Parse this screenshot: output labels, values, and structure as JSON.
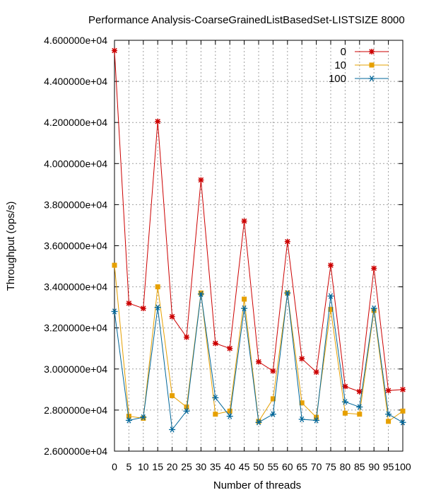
{
  "chart_data": {
    "type": "line",
    "title": "Performance Analysis-CoarseGrainedListBasedSet-LISTSIZE 8000",
    "xlabel": "Number of threads",
    "ylabel": "Throughput (ops/s)",
    "x": [
      0,
      5,
      10,
      15,
      20,
      25,
      30,
      35,
      40,
      45,
      50,
      55,
      60,
      65,
      70,
      75,
      80,
      85,
      90,
      95,
      100
    ],
    "xlim": [
      0,
      100
    ],
    "ylim": [
      26000,
      46000
    ],
    "x_ticks": [
      0,
      5,
      10,
      15,
      20,
      25,
      30,
      35,
      40,
      45,
      50,
      55,
      60,
      65,
      70,
      75,
      80,
      85,
      90,
      95,
      100
    ],
    "x_tick_labels": [
      "0",
      "5",
      "10",
      "15",
      "20",
      "25",
      "30",
      "35",
      "40",
      "45",
      "50",
      "55",
      "60",
      "65",
      "70",
      "75",
      "80",
      "85",
      "90",
      "95",
      "100"
    ],
    "y_ticks": [
      26000,
      28000,
      30000,
      32000,
      34000,
      36000,
      38000,
      40000,
      42000,
      44000,
      46000
    ],
    "y_tick_labels": [
      "2.600000e+04",
      "2.800000e+04",
      "3.000000e+04",
      "3.200000e+04",
      "3.400000e+04",
      "3.600000e+04",
      "3.800000e+04",
      "4.000000e+04",
      "4.200000e+04",
      "4.400000e+04",
      "4.600000e+04"
    ],
    "grid": true,
    "legend_position": "top-right",
    "series": [
      {
        "name": "0",
        "color": "#cc0000",
        "marker": "star",
        "values": [
          45500,
          33200,
          32950,
          42050,
          32550,
          31550,
          39200,
          31250,
          31000,
          37200,
          30350,
          29900,
          36200,
          30500,
          29850,
          35050,
          29150,
          28900,
          34900,
          28950,
          29000
        ]
      },
      {
        "name": "10",
        "color": "#e6a000",
        "marker": "square",
        "values": [
          35050,
          27700,
          27600,
          34000,
          28700,
          28150,
          33700,
          27800,
          27950,
          33400,
          27450,
          28550,
          33700,
          28350,
          27650,
          32900,
          27850,
          27800,
          32850,
          27450,
          27950
        ]
      },
      {
        "name": "100",
        "color": "#006699",
        "marker": "asterisk",
        "values": [
          32800,
          27500,
          27650,
          33000,
          27050,
          27950,
          33650,
          28600,
          27700,
          32950,
          27400,
          27800,
          33700,
          27550,
          27500,
          33550,
          28400,
          28150,
          32950,
          27800,
          27400
        ]
      }
    ]
  }
}
